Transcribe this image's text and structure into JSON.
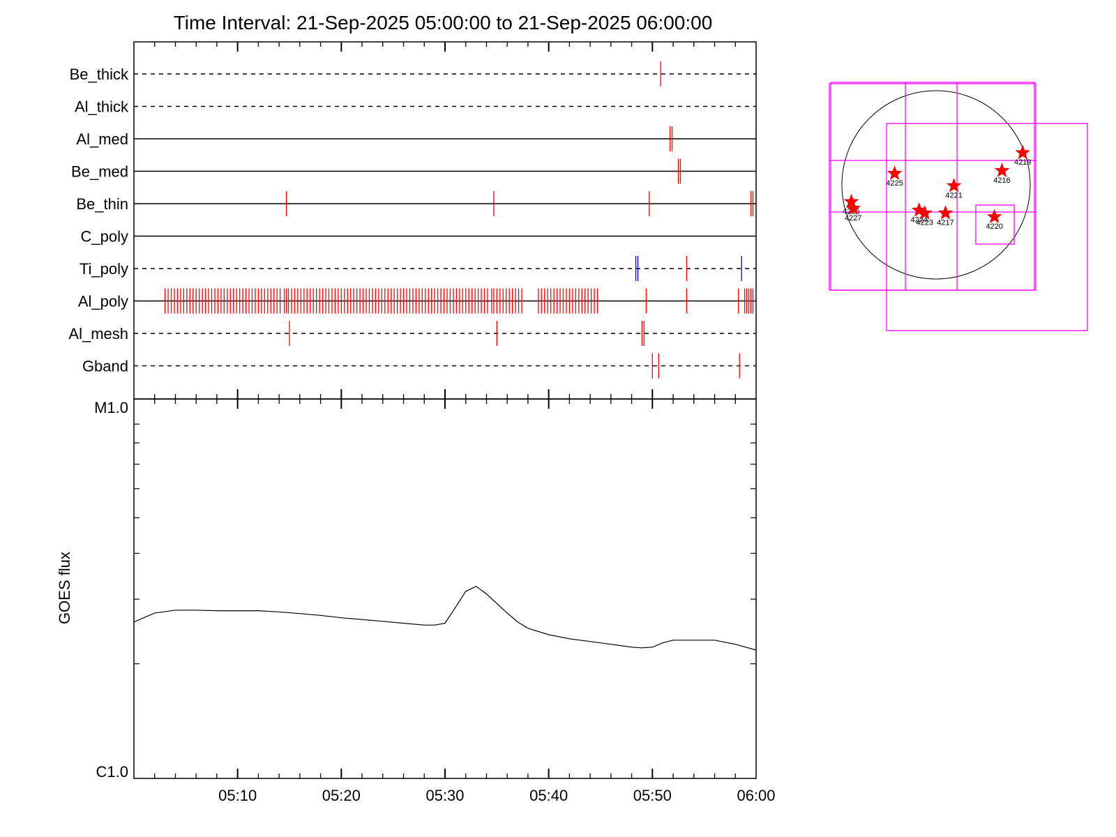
{
  "title": "Time Interval: 21-Sep-2025 05:00:00 to 21-Sep-2025 06:00:00",
  "colors": {
    "events": "#ff0000",
    "special_events": "#0000ff",
    "boxes": "#ff00ff",
    "axes": "#000000"
  },
  "chart_data": [
    {
      "type": "line",
      "title": "",
      "ylabel": "GOES flux",
      "yscale": "log",
      "ylim": [
        1e-06,
        1e-05
      ],
      "ytick_labels": [
        "M1.0",
        "C1.0"
      ],
      "xlim_minutes": [
        0,
        60
      ],
      "xtick_labels": [
        "05:10",
        "05:20",
        "05:30",
        "05:40",
        "05:50",
        "06:00"
      ],
      "series": [
        {
          "x": [
            0,
            2,
            4,
            6,
            8,
            10,
            12,
            14,
            16,
            18,
            20,
            22,
            24,
            26,
            28,
            29,
            30,
            31,
            32,
            33,
            34,
            35,
            36,
            37,
            38,
            40,
            42,
            44,
            46,
            48,
            49,
            50,
            51,
            52,
            54,
            56,
            58,
            60
          ],
          "y": [
            2.6e-06,
            2.75e-06,
            2.8e-06,
            2.8e-06,
            2.79e-06,
            2.79e-06,
            2.79e-06,
            2.77e-06,
            2.74e-06,
            2.71e-06,
            2.67e-06,
            2.64e-06,
            2.61e-06,
            2.58e-06,
            2.55e-06,
            2.55e-06,
            2.58e-06,
            2.85e-06,
            3.15e-06,
            3.25e-06,
            3.1e-06,
            2.92e-06,
            2.75e-06,
            2.6e-06,
            2.5e-06,
            2.4e-06,
            2.34e-06,
            2.3e-06,
            2.26e-06,
            2.22e-06,
            2.21e-06,
            2.22e-06,
            2.28e-06,
            2.32e-06,
            2.32e-06,
            2.32e-06,
            2.26e-06,
            2.18e-06
          ]
        }
      ]
    },
    {
      "type": "scatter",
      "title": "",
      "rows": [
        {
          "name": "Be_thick",
          "style": "dashed",
          "events": [
            50.8
          ]
        },
        {
          "name": "Al_thick",
          "style": "dashed",
          "events": []
        },
        {
          "name": "Al_med",
          "style": "solid",
          "events": [
            51.7,
            51.9
          ]
        },
        {
          "name": "Be_med",
          "style": "solid",
          "events": [
            52.5,
            52.7
          ]
        },
        {
          "name": "Be_thin",
          "style": "solid",
          "events": [
            14.7,
            34.7,
            49.7,
            59.5,
            59.7
          ]
        },
        {
          "name": "C_poly",
          "style": "solid",
          "events": []
        },
        {
          "name": "Ti_poly",
          "style": "dashed",
          "events": [
            53.3
          ],
          "special_events": [
            48.4,
            48.6,
            58.6
          ]
        },
        {
          "name": "Al_poly",
          "style": "solid",
          "events": [
            3.0,
            3.3,
            3.6,
            3.9,
            4.2,
            4.5,
            4.8,
            5.1,
            5.4,
            5.7,
            6.0,
            6.3,
            6.6,
            6.9,
            7.2,
            7.5,
            7.8,
            8.1,
            8.4,
            8.7,
            9.0,
            9.3,
            9.6,
            9.9,
            10.2,
            10.5,
            10.8,
            11.1,
            11.4,
            11.7,
            12.0,
            12.3,
            12.6,
            12.9,
            13.2,
            13.5,
            13.8,
            14.1,
            14.5,
            14.7,
            14.9,
            15.2,
            15.5,
            15.8,
            16.1,
            16.4,
            16.7,
            17.0,
            17.3,
            17.6,
            17.9,
            18.2,
            18.5,
            18.8,
            19.1,
            19.4,
            19.7,
            20.0,
            20.3,
            20.6,
            20.9,
            21.2,
            21.5,
            21.8,
            22.1,
            22.4,
            22.7,
            23.0,
            23.3,
            23.6,
            23.9,
            24.2,
            24.5,
            24.8,
            25.1,
            25.4,
            25.7,
            26.0,
            26.3,
            26.6,
            26.9,
            27.2,
            27.5,
            27.8,
            28.1,
            28.4,
            28.7,
            29.0,
            29.3,
            29.6,
            29.9,
            30.2,
            30.5,
            30.8,
            31.1,
            31.4,
            31.7,
            32.0,
            32.3,
            32.6,
            32.9,
            33.2,
            33.5,
            33.8,
            34.1,
            34.5,
            34.7,
            35.0,
            35.3,
            35.6,
            35.9,
            36.2,
            36.5,
            36.8,
            37.1,
            37.4,
            39.0,
            39.3,
            39.6,
            39.9,
            40.2,
            40.5,
            40.8,
            41.1,
            41.4,
            41.7,
            42.0,
            42.3,
            42.6,
            42.9,
            43.2,
            43.5,
            43.8,
            44.1,
            44.4,
            44.7,
            49.4,
            53.3,
            58.3,
            58.9,
            59.1,
            59.3,
            59.5,
            59.7
          ]
        },
        {
          "name": "Al_mesh",
          "style": "dashed",
          "events": [
            15.0,
            35.0,
            49.0,
            49.2
          ]
        },
        {
          "name": "Gband",
          "style": "dashed",
          "events": [
            50.0,
            50.6,
            58.4
          ]
        }
      ]
    },
    {
      "type": "scatter",
      "title": "",
      "regions": [
        {
          "label": "4216",
          "x": 0.7,
          "y": -0.15
        },
        {
          "label": "4219",
          "x": 0.92,
          "y": -0.34
        },
        {
          "label": "4225",
          "x": -0.44,
          "y": -0.12
        },
        {
          "label": "4221",
          "x": 0.19,
          "y": 0.01
        },
        {
          "label": "4226",
          "x": -0.9,
          "y": 0.18
        },
        {
          "label": "4227",
          "x": -0.88,
          "y": 0.25
        },
        {
          "label": "4224",
          "x": -0.18,
          "y": 0.27
        },
        {
          "label": "4223",
          "x": -0.12,
          "y": 0.3
        },
        {
          "label": "4217",
          "x": 0.1,
          "y": 0.3
        },
        {
          "label": "4220",
          "x": 0.62,
          "y": 0.34
        }
      ]
    }
  ]
}
